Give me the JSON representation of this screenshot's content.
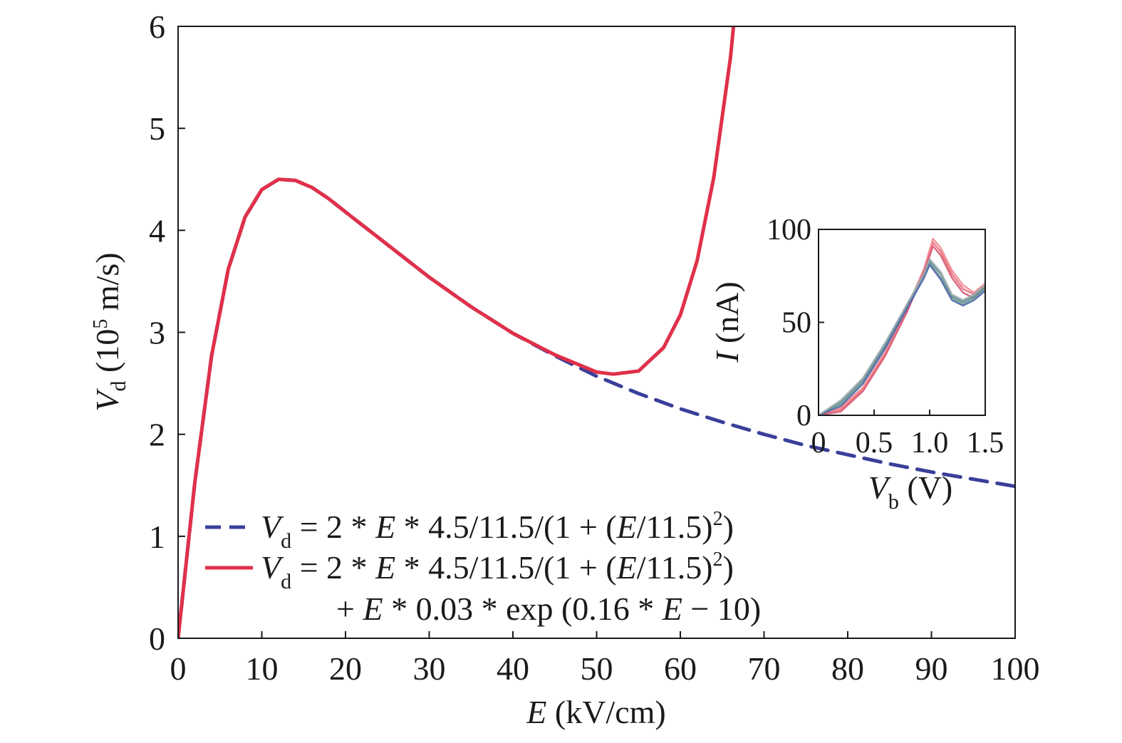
{
  "chart_data": [
    {
      "type": "line",
      "role": "main",
      "title": "",
      "xlabel": {
        "symbol": "E",
        "unit": " (kV/cm)"
      },
      "ylabel": {
        "symbol": "V",
        "subscript": "d",
        "unit_pre": " (10",
        "unit_sup": "5",
        "unit_post": " m/s)"
      },
      "xlim": [
        0,
        100
      ],
      "ylim": [
        0,
        6
      ],
      "xticks": [
        "0",
        "10",
        "20",
        "30",
        "40",
        "50",
        "60",
        "70",
        "80",
        "90",
        "100"
      ],
      "yticks": [
        "0",
        "1",
        "2",
        "3",
        "4",
        "5",
        "6"
      ],
      "grid": false,
      "legend_position": "bottom-left",
      "series": [
        {
          "legend": {
            "lhs": "V",
            "lhs_sub": "d",
            "rhs_a": " = 2 * ",
            "E1": "E",
            "rhs_b": " * 4.5/11.5/(1 + (",
            "E2": "E",
            "rhs_c": "/11.5)",
            "sup": "2",
            "rhs_d": ")"
          },
          "style": "dashed",
          "color": "#3a3f9a",
          "x": [
            0,
            2,
            4,
            6,
            8,
            10,
            12,
            14,
            16,
            18,
            20,
            25,
            30,
            35,
            40,
            45,
            50,
            55,
            60,
            65,
            70,
            75,
            80,
            85,
            90,
            95,
            100
          ],
          "y": [
            0,
            1.53,
            2.77,
            3.62,
            4.13,
            4.4,
            4.5,
            4.49,
            4.42,
            4.31,
            4.18,
            3.86,
            3.54,
            3.25,
            2.99,
            2.77,
            2.57,
            2.4,
            2.25,
            2.12,
            2.0,
            1.89,
            1.8,
            1.71,
            1.63,
            1.56,
            1.49
          ]
        },
        {
          "legend": {
            "lhs": "V",
            "lhs_sub": "d",
            "rhs_a": " = 2 * ",
            "E1": "E",
            "rhs_b": " * 4.5/11.5/(1 + (",
            "E2": "E",
            "rhs_c": "/11.5)",
            "sup": "2",
            "rhs_d": ")",
            "line2_a": "+ ",
            "line2_E": "E",
            "line2_b": " * 0.03 * exp (0.16 * ",
            "line2_E2": "E",
            "line2_c": " − 10)"
          },
          "style": "solid",
          "color": "#e0304a",
          "x": [
            0,
            2,
            4,
            6,
            8,
            10,
            12,
            14,
            16,
            18,
            20,
            25,
            30,
            35,
            40,
            45,
            50,
            52,
            55,
            58,
            60,
            62,
            64,
            66,
            68
          ],
          "y": [
            0,
            1.53,
            2.77,
            3.62,
            4.13,
            4.4,
            4.5,
            4.49,
            4.42,
            4.31,
            4.18,
            3.86,
            3.54,
            3.25,
            2.99,
            2.78,
            2.61,
            2.59,
            2.62,
            2.85,
            3.17,
            3.7,
            4.52,
            5.7,
            7.4
          ]
        }
      ]
    },
    {
      "type": "line",
      "role": "inset",
      "title": "",
      "xlabel": {
        "symbol": "V",
        "subscript": "b",
        "unit": " (V)"
      },
      "ylabel": {
        "symbol": "I",
        "unit": " (nA)"
      },
      "xlim": [
        0,
        1.5
      ],
      "ylim": [
        0,
        100
      ],
      "xticks": [
        "0",
        "0.5",
        "1.0",
        "1.5"
      ],
      "yticks": [
        "0",
        "50",
        "100"
      ],
      "grid": false,
      "series": [
        {
          "style": "solid",
          "color": "#e8707a",
          "x": [
            0,
            0.2,
            0.4,
            0.6,
            0.8,
            0.95,
            1.03,
            1.1,
            1.2,
            1.3,
            1.4,
            1.5
          ],
          "y": [
            0,
            3,
            14,
            33,
            57,
            78,
            93,
            88,
            76,
            68,
            65,
            70
          ]
        },
        {
          "style": "solid",
          "color": "#f28a90",
          "x": [
            0,
            0.2,
            0.4,
            0.6,
            0.8,
            0.95,
            1.03,
            1.1,
            1.2,
            1.3,
            1.4,
            1.5
          ],
          "y": [
            0,
            4,
            15,
            34,
            58,
            79,
            95,
            90,
            78,
            70,
            66,
            71
          ]
        },
        {
          "style": "solid",
          "color": "#d95a74",
          "x": [
            0,
            0.2,
            0.4,
            0.6,
            0.8,
            0.95,
            1.03,
            1.1,
            1.2,
            1.3,
            1.4,
            1.5
          ],
          "y": [
            0,
            2,
            13,
            32,
            56,
            77,
            91,
            86,
            74,
            66,
            63,
            69
          ]
        },
        {
          "style": "solid",
          "color": "#7aa6a0",
          "x": [
            0,
            0.2,
            0.4,
            0.6,
            0.8,
            0.95,
            1.0,
            1.1,
            1.2,
            1.3,
            1.4,
            1.5
          ],
          "y": [
            0,
            6,
            18,
            37,
            59,
            75,
            82,
            74,
            63,
            60,
            63,
            68
          ]
        },
        {
          "style": "solid",
          "color": "#5f8f8a",
          "x": [
            0,
            0.2,
            0.4,
            0.6,
            0.8,
            0.95,
            1.0,
            1.1,
            1.2,
            1.3,
            1.4,
            1.5
          ],
          "y": [
            0,
            7,
            19,
            38,
            60,
            76,
            83,
            76,
            64,
            61,
            64,
            69
          ]
        },
        {
          "style": "solid",
          "color": "#4f67a8",
          "x": [
            0,
            0.2,
            0.4,
            0.6,
            0.8,
            0.95,
            1.0,
            1.1,
            1.2,
            1.3,
            1.4,
            1.5
          ],
          "y": [
            0,
            5,
            17,
            36,
            58,
            74,
            81,
            73,
            62,
            59,
            62,
            67
          ]
        },
        {
          "style": "solid",
          "color": "#9aa9b0",
          "x": [
            0,
            0.2,
            0.4,
            0.6,
            0.8,
            0.95,
            1.0,
            1.1,
            1.2,
            1.3,
            1.4,
            1.5
          ],
          "y": [
            0,
            8,
            20,
            39,
            60,
            76,
            84,
            77,
            65,
            62,
            65,
            70
          ]
        }
      ]
    }
  ]
}
